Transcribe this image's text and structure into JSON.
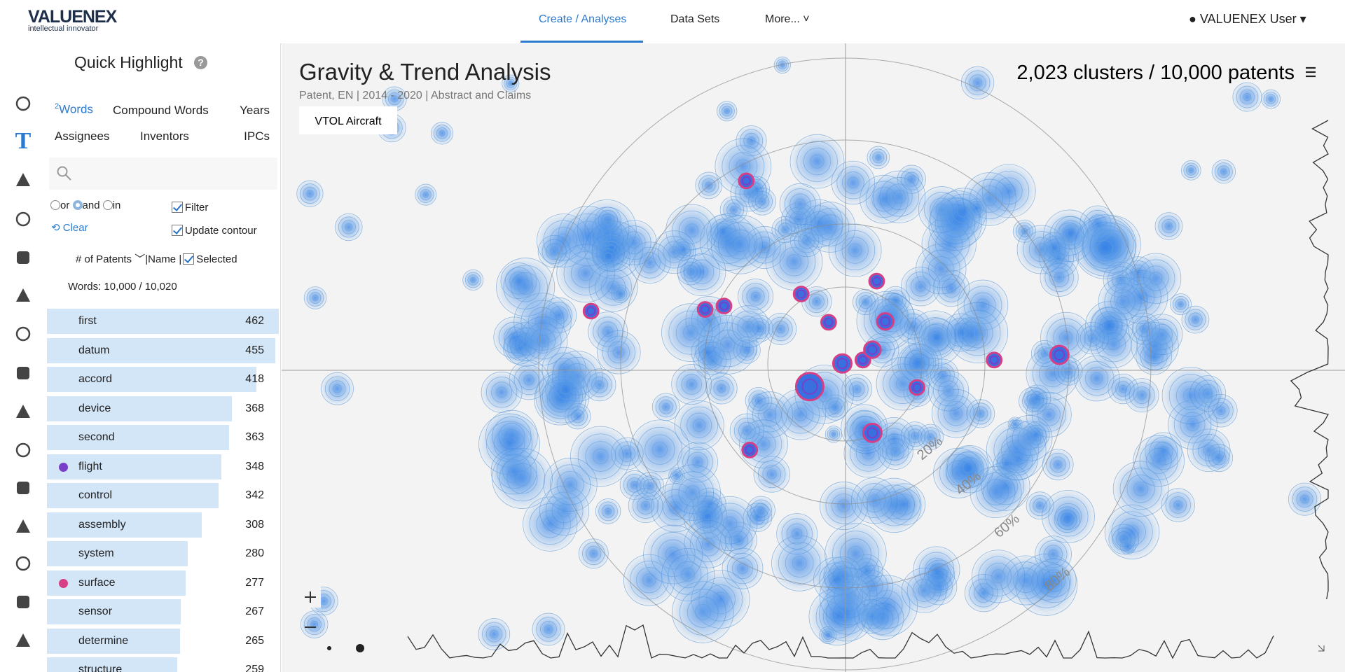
{
  "header": {
    "logo": "VALUENEX",
    "tagline": "intellectual innovator",
    "nav": [
      "Create / Analyses",
      "Data Sets",
      "More..."
    ],
    "user": "VALUENEX User"
  },
  "sidebar": {
    "title": "Quick Highlight",
    "words_superscript": "2",
    "tabs": [
      "Words",
      "Compound Words",
      "Years",
      "Assignees",
      "Inventors",
      "IPCs"
    ],
    "match_modes": [
      "or",
      "and",
      "in"
    ],
    "filter": "Filter",
    "update_contour": "Update contour",
    "clear": "Clear",
    "sort": [
      "# of Patents",
      "Name",
      "Selected"
    ],
    "sort_separator": "|",
    "word_count": "Words: 10,000 / 10,020",
    "words": [
      {
        "label": "first",
        "count": 462
      },
      {
        "label": "datum",
        "count": 455
      },
      {
        "label": "accord",
        "count": 418
      },
      {
        "label": "device",
        "count": 368
      },
      {
        "label": "second",
        "count": 363
      },
      {
        "label": "flight",
        "count": 348,
        "color": "#7a3fc8"
      },
      {
        "label": "control",
        "count": 342
      },
      {
        "label": "assembly",
        "count": 308
      },
      {
        "label": "system",
        "count": 280
      },
      {
        "label": "surface",
        "count": 277,
        "color": "#d63f86"
      },
      {
        "label": "sensor",
        "count": 267
      },
      {
        "label": "determine",
        "count": 265
      },
      {
        "label": "structure",
        "count": 259
      }
    ]
  },
  "map": {
    "title": "Gravity & Trend Analysis",
    "subtitle": "Patent, EN | 2014 - 2020 | Abstract and Claims",
    "tag": "VTOL Aircraft",
    "summary": "2,023 clusters / 10,000 patents",
    "rings": [
      "20%",
      "40%",
      "60%",
      "80%"
    ]
  }
}
